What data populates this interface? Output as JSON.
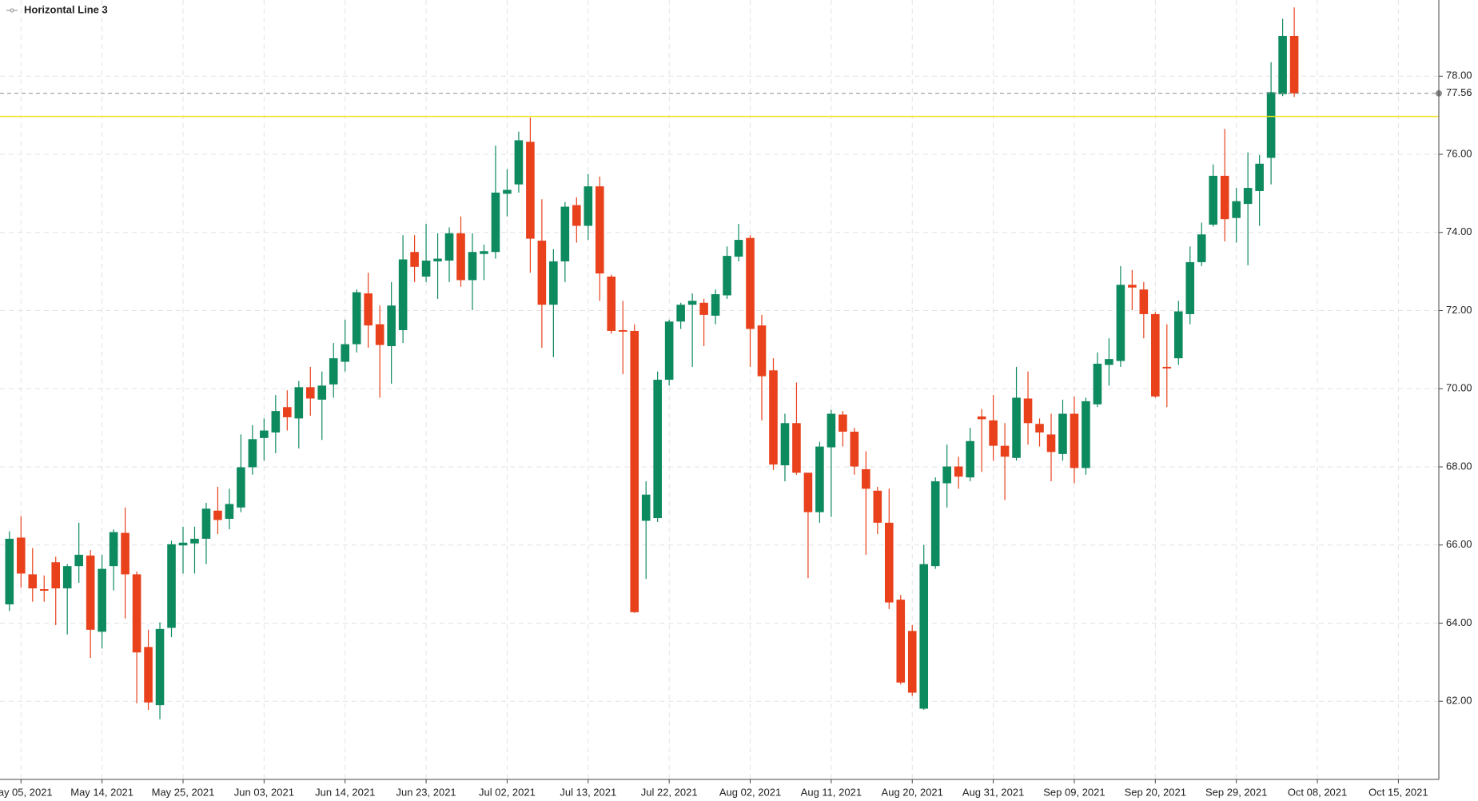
{
  "chart_data": {
    "type": "candlestick",
    "categories": [
      null,
      "May 05, 2021",
      null,
      null,
      null,
      null,
      null,
      null,
      "May 14, 2021",
      null,
      null,
      null,
      null,
      null,
      null,
      "May 25, 2021",
      null,
      null,
      null,
      null,
      null,
      null,
      "Jun 03, 2021",
      null,
      null,
      null,
      null,
      null,
      null,
      "Jun 14, 2021",
      null,
      null,
      null,
      null,
      null,
      null,
      "Jun 23, 2021",
      null,
      null,
      null,
      null,
      null,
      null,
      "Jul 02, 2021",
      null,
      null,
      null,
      null,
      null,
      null,
      "Jul 13, 2021",
      null,
      null,
      null,
      null,
      null,
      null,
      "Jul 22, 2021",
      null,
      null,
      null,
      null,
      null,
      null,
      "Aug 02, 2021",
      null,
      null,
      null,
      null,
      null,
      null,
      "Aug 11, 2021",
      null,
      null,
      null,
      null,
      null,
      null,
      "Aug 20, 2021",
      null,
      null,
      null,
      null,
      null,
      null,
      "Aug 31, 2021",
      null,
      null,
      null,
      null,
      null,
      null,
      "Sep 09, 2021",
      null,
      null,
      null,
      null,
      null,
      null,
      "Sep 20, 2021",
      null,
      null,
      null,
      null,
      null,
      null,
      "Sep 29, 2021",
      null,
      null,
      null,
      null,
      null,
      null,
      "Oct 08, 2021",
      null,
      null,
      null,
      null,
      null,
      null,
      "Oct 15, 2021",
      null,
      null,
      null
    ],
    "open": [
      64.48,
      66.19,
      65.25,
      64.87,
      65.56,
      64.89,
      65.46,
      65.73,
      63.78,
      65.46,
      66.31,
      65.25,
      63.39,
      61.9,
      63.88,
      65.99,
      66.04,
      66.16,
      66.88,
      66.67,
      66.96,
      67.99,
      68.74,
      68.88,
      69.53,
      69.24,
      70.04,
      69.72,
      70.11,
      70.69,
      71.14,
      72.44,
      71.65,
      71.09,
      71.5,
      73.5,
      72.87,
      73.26,
      73.28,
      73.98,
      72.78,
      73.45,
      73.5,
      74.99,
      75.23,
      76.32,
      73.79,
      72.15,
      73.26,
      74.7,
      74.17,
      75.18,
      72.87,
      71.5,
      71.48,
      66.62,
      66.69,
      70.23,
      71.72,
      72.15,
      72.2,
      71.87,
      72.39,
      73.38,
      73.86,
      71.62,
      70.47,
      68.04,
      69.12,
      67.85,
      66.84,
      68.5,
      69.34,
      68.9,
      67.94,
      67.39,
      66.57,
      64.6,
      63.8,
      61.81,
      65.46,
      67.58,
      68.01,
      67.73,
      69.29,
      69.19,
      68.54,
      68.23,
      69.75,
      69.1,
      68.83,
      68.33,
      69.36,
      67.97,
      69.6,
      70.61,
      70.71,
      72.66,
      72.54,
      71.91,
      70.56,
      70.78,
      71.91,
      73.24,
      74.2,
      75.45,
      74.37,
      74.73,
      75.06,
      75.91,
      77.54,
      79.03,
      null,
      null,
      null,
      null,
      null,
      null,
      null,
      null,
      null,
      null,
      null,
      null
    ],
    "high": [
      66.35,
      66.74,
      65.92,
      65.22,
      65.7,
      65.51,
      66.57,
      65.87,
      65.75,
      66.4,
      66.96,
      65.32,
      63.83,
      64.02,
      66.11,
      66.47,
      66.47,
      67.08,
      67.49,
      67.44,
      68.83,
      69.07,
      69.24,
      69.84,
      69.96,
      70.2,
      70.56,
      70.44,
      71.17,
      71.77,
      72.54,
      72.97,
      72.13,
      72.73,
      73.93,
      73.93,
      74.22,
      73.98,
      74.13,
      74.41,
      73.98,
      73.69,
      76.22,
      75.62,
      76.58,
      76.94,
      74.85,
      73.57,
      74.78,
      74.9,
      75.5,
      75.43,
      72.92,
      72.25,
      71.65,
      67.63,
      70.44,
      71.77,
      72.2,
      72.44,
      72.3,
      72.54,
      73.64,
      74.22,
      73.93,
      71.89,
      70.78,
      69.36,
      70.16,
      67.85,
      68.64,
      69.46,
      69.43,
      69.0,
      68.4,
      67.49,
      67.44,
      64.72,
      63.95,
      66.0,
      67.73,
      68.57,
      68.26,
      69.0,
      69.48,
      69.84,
      69.12,
      70.56,
      70.44,
      69.24,
      69.36,
      69.72,
      69.8,
      69.77,
      70.93,
      71.29,
      73.14,
      73.04,
      72.73,
      71.96,
      71.65,
      72.25,
      73.64,
      74.25,
      75.74,
      76.65,
      75.14,
      76.05,
      75.98,
      78.36,
      79.47,
      79.76,
      null,
      null,
      null,
      null,
      null,
      null,
      null,
      null,
      null,
      null,
      null,
      null
    ],
    "low": [
      64.31,
      64.91,
      64.55,
      64.55,
      63.95,
      63.71,
      65.03,
      63.11,
      63.35,
      64.84,
      64.12,
      61.95,
      61.78,
      61.54,
      63.64,
      65.27,
      65.27,
      65.51,
      66.28,
      66.4,
      66.84,
      67.8,
      68.16,
      68.35,
      68.93,
      68.47,
      69.31,
      68.69,
      69.77,
      70.44,
      70.93,
      71.05,
      69.77,
      70.13,
      71.17,
      72.73,
      72.73,
      72.3,
      72.73,
      72.61,
      72.01,
      72.78,
      73.33,
      74.41,
      75.02,
      72.97,
      71.05,
      70.81,
      72.73,
      73.74,
      73.81,
      72.25,
      71.41,
      70.37,
      64.26,
      65.13,
      66.59,
      70.08,
      71.53,
      70.56,
      71.09,
      71.65,
      72.3,
      73.26,
      70.56,
      69.19,
      67.92,
      67.63,
      67.8,
      65.15,
      66.57,
      66.72,
      68.52,
      67.8,
      65.75,
      66.28,
      64.36,
      62.43,
      62.14,
      61.78,
      65.39,
      66.96,
      67.44,
      67.63,
      67.87,
      68.16,
      67.15,
      68.16,
      68.57,
      68.52,
      67.63,
      68.16,
      67.58,
      67.8,
      69.53,
      70.08,
      70.56,
      72.01,
      71.29,
      69.77,
      69.53,
      70.61,
      71.65,
      73.14,
      74.15,
      73.77,
      73.74,
      73.16,
      74.17,
      75.23,
      77.49,
      77.47,
      null,
      null,
      null,
      null,
      null,
      null,
      null,
      null,
      null,
      null,
      null,
      null
    ],
    "close": [
      66.16,
      65.27,
      64.89,
      64.83,
      64.89,
      65.46,
      65.75,
      63.83,
      65.39,
      66.33,
      65.25,
      63.25,
      61.97,
      63.85,
      66.02,
      66.06,
      66.16,
      66.93,
      66.64,
      67.05,
      67.99,
      68.71,
      68.93,
      69.43,
      69.27,
      70.04,
      69.75,
      70.08,
      70.78,
      71.14,
      72.47,
      71.62,
      71.12,
      72.13,
      73.31,
      73.12,
      73.28,
      73.33,
      73.98,
      72.78,
      73.5,
      73.52,
      75.02,
      75.09,
      76.36,
      73.84,
      72.15,
      73.26,
      74.66,
      74.17,
      75.18,
      72.95,
      71.48,
      71.46,
      64.28,
      67.29,
      70.23,
      71.72,
      72.15,
      72.25,
      71.89,
      72.42,
      73.4,
      73.81,
      71.53,
      70.32,
      68.06,
      69.12,
      67.85,
      66.84,
      68.52,
      69.36,
      68.9,
      68.01,
      67.44,
      66.57,
      64.53,
      62.48,
      62.22,
      65.51,
      67.63,
      68.01,
      67.75,
      68.66,
      69.22,
      68.54,
      68.26,
      69.77,
      69.12,
      68.88,
      68.38,
      69.36,
      67.97,
      69.68,
      70.64,
      70.76,
      72.66,
      72.59,
      71.91,
      69.8,
      70.52,
      71.98,
      73.24,
      73.95,
      75.45,
      74.34,
      74.8,
      75.14,
      75.76,
      77.59,
      79.03,
      77.56,
      null,
      null,
      null,
      null,
      null,
      null,
      null,
      null,
      null,
      null,
      null,
      null
    ],
    "up_color": "#0e8a5f",
    "down_color": "#e8411c",
    "ylim": [
      60.0,
      79.95
    ],
    "yticks": [
      {
        "value": 62,
        "label": "62.00"
      },
      {
        "value": 64,
        "label": "64.00"
      },
      {
        "value": 66,
        "label": "66.00"
      },
      {
        "value": 68,
        "label": "68.00"
      },
      {
        "value": 70,
        "label": "70.00"
      },
      {
        "value": 72,
        "label": "72.00"
      },
      {
        "value": 74,
        "label": "74.00"
      },
      {
        "value": 76,
        "label": "76.00"
      },
      {
        "value": 78,
        "label": "78.00"
      }
    ],
    "grid": true,
    "horizontal_lines": [
      {
        "name": "Horizontal Line 3",
        "value": 76.97,
        "color": "#f2e21c"
      }
    ],
    "last_price": {
      "value": 77.56,
      "label": "77.56",
      "color": "#8a8a8a"
    }
  }
}
